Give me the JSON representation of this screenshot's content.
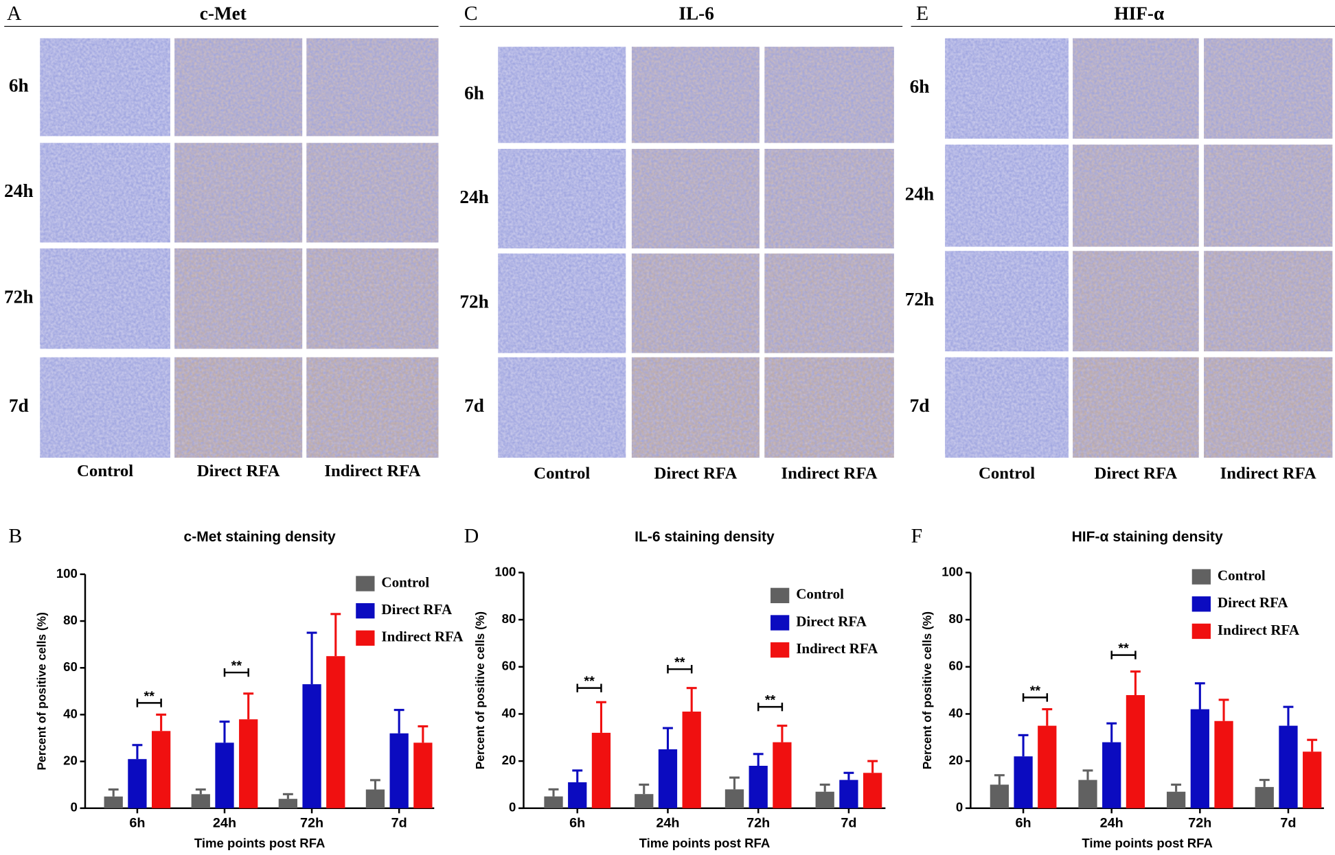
{
  "image_panels": [
    {
      "panel": "A",
      "title": "c-Met",
      "rows": [
        "6h",
        "24h",
        "72h",
        "7d"
      ],
      "columns": [
        "Control",
        "Direct RFA",
        "Indirect RFA"
      ]
    },
    {
      "panel": "C",
      "title": "IL-6",
      "rows": [
        "6h",
        "24h",
        "72h",
        "7d"
      ],
      "columns": [
        "Control",
        "Direct RFA",
        "Indirect RFA"
      ]
    },
    {
      "panel": "E",
      "title": "HIF-α",
      "rows": [
        "6h",
        "24h",
        "72h",
        "7d"
      ],
      "columns": [
        "Control",
        "Direct RFA",
        "Indirect RFA"
      ]
    }
  ],
  "chart_data": [
    {
      "type": "bar",
      "panel": "B",
      "title": "c-Met staining density",
      "x_label": "Time points post RFA",
      "y_label": "Percent of positive cells (%)",
      "categories": [
        "6h",
        "24h",
        "72h",
        "7d"
      ],
      "ylim": [
        0,
        100
      ],
      "yticks": [
        0,
        20,
        40,
        60,
        80,
        100
      ],
      "legend": "upper right",
      "series": [
        {
          "name": "Control",
          "color": "#616161",
          "values": [
            5,
            6,
            4,
            8
          ],
          "errors": [
            3,
            2,
            2,
            4
          ]
        },
        {
          "name": "Direct RFA",
          "color": "#0b0bc0",
          "values": [
            21,
            28,
            53,
            32
          ],
          "errors": [
            6,
            9,
            22,
            10
          ]
        },
        {
          "name": "Indirect RFA",
          "color": "#f01010",
          "values": [
            33,
            38,
            65,
            28
          ],
          "errors": [
            7,
            11,
            18,
            7
          ]
        }
      ],
      "annotations": [
        {
          "text": "**",
          "category": "6h",
          "y": 45
        },
        {
          "text": "**",
          "category": "24h",
          "y": 58
        }
      ]
    },
    {
      "type": "bar",
      "panel": "D",
      "title": "IL-6 staining density",
      "x_label": "Time points post RFA",
      "y_label": "Percent of positive cells (%)",
      "categories": [
        "6h",
        "24h",
        "72h",
        "7d"
      ],
      "ylim": [
        0,
        100
      ],
      "yticks": [
        0,
        20,
        40,
        60,
        80,
        100
      ],
      "legend": "upper right",
      "series": [
        {
          "name": "Control",
          "color": "#616161",
          "values": [
            5,
            6,
            8,
            7
          ],
          "errors": [
            3,
            4,
            5,
            3
          ]
        },
        {
          "name": "Direct RFA",
          "color": "#0b0bc0",
          "values": [
            11,
            25,
            18,
            12
          ],
          "errors": [
            5,
            9,
            5,
            3
          ]
        },
        {
          "name": "Indirect RFA",
          "color": "#f01010",
          "values": [
            32,
            41,
            28,
            15
          ],
          "errors": [
            13,
            10,
            7,
            5
          ]
        }
      ],
      "annotations": [
        {
          "text": "**",
          "category": "6h",
          "y": 51
        },
        {
          "text": "**",
          "category": "24h",
          "y": 59
        },
        {
          "text": "**",
          "category": "72h",
          "y": 43
        }
      ]
    },
    {
      "type": "bar",
      "panel": "F",
      "title": "HIF-α  staining density",
      "x_label": "Time points post RFA",
      "y_label": "Percent of positive cells (%)",
      "categories": [
        "6h",
        "24h",
        "72h",
        "7d"
      ],
      "ylim": [
        0,
        100
      ],
      "yticks": [
        0,
        20,
        40,
        60,
        80,
        100
      ],
      "legend": "upper right",
      "series": [
        {
          "name": "Control",
          "color": "#616161",
          "values": [
            10,
            12,
            7,
            9
          ],
          "errors": [
            4,
            4,
            3,
            3
          ]
        },
        {
          "name": "Direct RFA",
          "color": "#0b0bc0",
          "values": [
            22,
            28,
            42,
            35
          ],
          "errors": [
            9,
            8,
            11,
            8
          ]
        },
        {
          "name": "Indirect RFA",
          "color": "#f01010",
          "values": [
            35,
            48,
            37,
            24
          ],
          "errors": [
            7,
            10,
            9,
            5
          ]
        }
      ],
      "annotations": [
        {
          "text": "**",
          "category": "6h",
          "y": 47
        },
        {
          "text": "**",
          "category": "24h",
          "y": 65
        }
      ]
    }
  ]
}
